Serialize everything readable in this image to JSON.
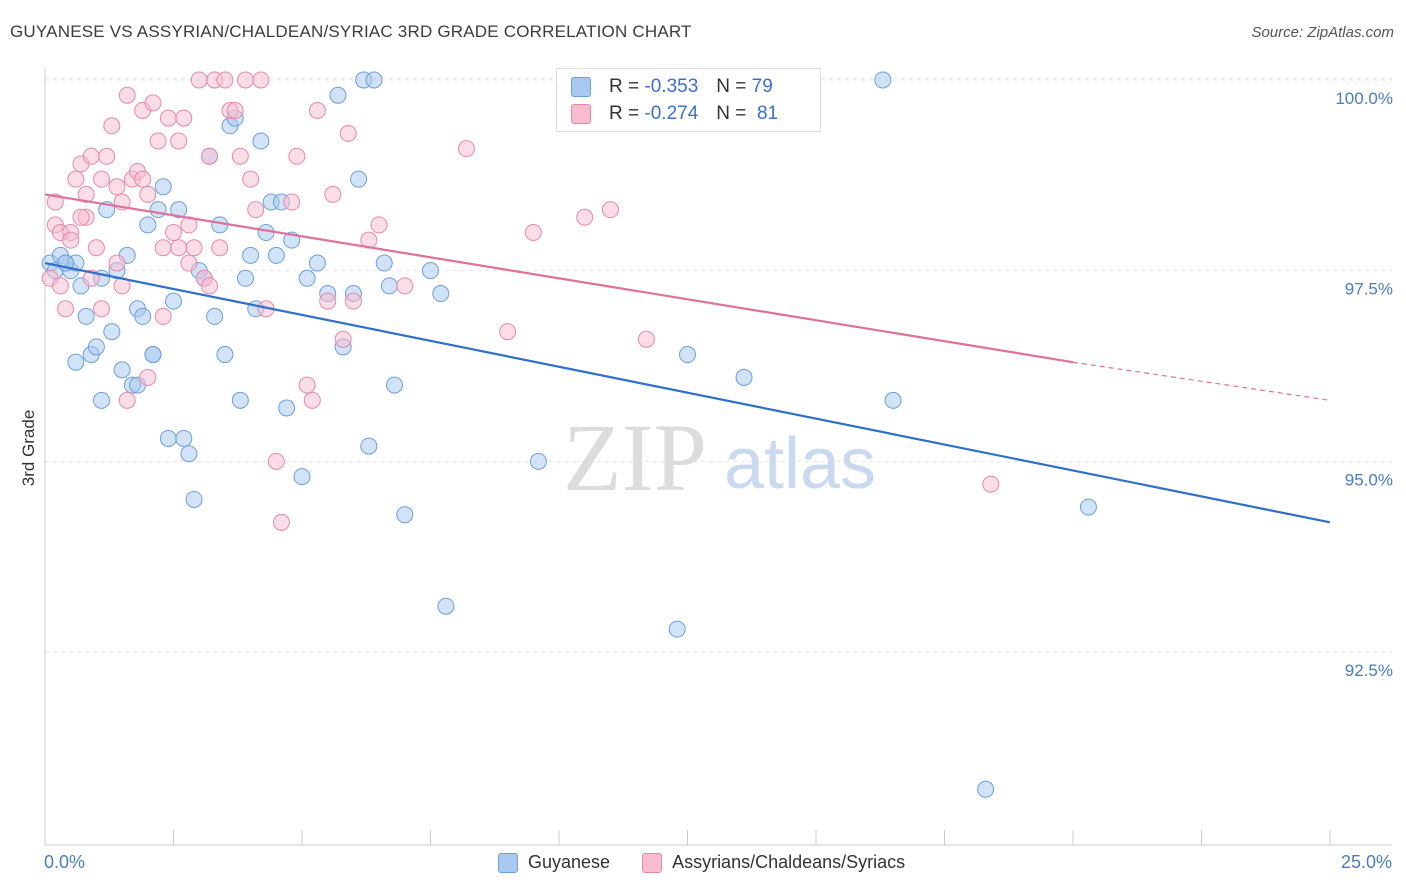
{
  "title": "GUYANESE VS ASSYRIAN/CHALDEAN/SYRIAC 3RD GRADE CORRELATION CHART",
  "source": "Source: ZipAtlas.com",
  "watermark": {
    "zip": "ZIP",
    "atlas": "atlas"
  },
  "legend": {
    "rows": [
      {
        "r_label": "R =",
        "r_value": "-0.353",
        "n_label": "N =",
        "n_value": "79",
        "color": "#a8c8f0",
        "border": "#6a9fe0"
      },
      {
        "r_label": "R =",
        "r_value": "-0.274",
        "n_label": "N =",
        "n_value": "81",
        "color": "#f8bcd0",
        "border": "#e888a8"
      }
    ]
  },
  "bottom_legend": [
    {
      "label": "Guyanese",
      "color": "#a8c8f0",
      "border": "#6a9fe0"
    },
    {
      "label": "Assyrians/Chaldeans/Syriacs",
      "color": "#f8bcd0",
      "border": "#e888a8"
    }
  ],
  "x_axis": {
    "min_label": "0.0%",
    "max_label": "25.0%"
  },
  "chart_data": {
    "type": "scatter",
    "title": "GUYANESE VS ASSYRIAN/CHALDEAN/SYRIAC 3RD GRADE CORRELATION CHART",
    "xlabel": "",
    "ylabel": "3rd Grade",
    "xlim": [
      0,
      25
    ],
    "ylim": [
      90.0,
      100.5
    ],
    "y_ticks": [
      {
        "value": 100.0,
        "label": "100.0%"
      },
      {
        "value": 97.5,
        "label": "97.5%"
      },
      {
        "value": 95.0,
        "label": "95.0%"
      },
      {
        "value": 92.5,
        "label": "92.5%"
      }
    ],
    "grid": true,
    "legend_position": "top-center",
    "series": [
      {
        "name": "Guyanese",
        "color": "#6a9fe0",
        "fill": "#a8c8f0",
        "trend": {
          "x": [
            0,
            25
          ],
          "y": [
            97.6,
            94.2
          ]
        },
        "points": [
          [
            0.1,
            97.6
          ],
          [
            0.2,
            97.5
          ],
          [
            0.3,
            97.7
          ],
          [
            0.4,
            97.6
          ],
          [
            0.5,
            97.5
          ],
          [
            0.6,
            97.6
          ],
          [
            0.7,
            97.3
          ],
          [
            0.8,
            96.9
          ],
          [
            0.9,
            96.4
          ],
          [
            1.0,
            96.5
          ],
          [
            0.6,
            96.3
          ],
          [
            1.1,
            95.8
          ],
          [
            1.2,
            98.3
          ],
          [
            1.3,
            96.7
          ],
          [
            1.4,
            97.5
          ],
          [
            1.5,
            96.2
          ],
          [
            1.6,
            97.7
          ],
          [
            1.7,
            96.0
          ],
          [
            1.8,
            97.0
          ],
          [
            1.9,
            96.9
          ],
          [
            2.0,
            98.1
          ],
          [
            2.1,
            96.4
          ],
          [
            2.2,
            98.3
          ],
          [
            2.3,
            98.6
          ],
          [
            2.4,
            95.3
          ],
          [
            2.5,
            97.1
          ],
          [
            2.6,
            98.3
          ],
          [
            2.7,
            95.3
          ],
          [
            2.8,
            95.1
          ],
          [
            2.9,
            94.5
          ],
          [
            3.0,
            97.5
          ],
          [
            3.1,
            97.4
          ],
          [
            3.2,
            99.0
          ],
          [
            3.3,
            96.9
          ],
          [
            3.4,
            98.1
          ],
          [
            3.5,
            96.4
          ],
          [
            3.6,
            99.4
          ],
          [
            3.7,
            99.5
          ],
          [
            3.8,
            95.8
          ],
          [
            3.9,
            97.4
          ],
          [
            4.0,
            97.7
          ],
          [
            4.1,
            97.0
          ],
          [
            4.2,
            99.2
          ],
          [
            4.3,
            98.0
          ],
          [
            4.4,
            98.4
          ],
          [
            4.5,
            97.7
          ],
          [
            4.6,
            98.4
          ],
          [
            4.7,
            95.7
          ],
          [
            4.8,
            97.9
          ],
          [
            5.0,
            94.8
          ],
          [
            5.1,
            97.4
          ],
          [
            5.3,
            97.6
          ],
          [
            5.5,
            97.2
          ],
          [
            5.7,
            99.8
          ],
          [
            5.8,
            96.5
          ],
          [
            6.0,
            97.2
          ],
          [
            6.1,
            98.7
          ],
          [
            6.2,
            100.0
          ],
          [
            6.3,
            95.2
          ],
          [
            6.4,
            100.0
          ],
          [
            6.6,
            97.6
          ],
          [
            6.7,
            97.3
          ],
          [
            6.8,
            96.0
          ],
          [
            7.0,
            94.3
          ],
          [
            7.5,
            97.5
          ],
          [
            7.7,
            97.2
          ],
          [
            7.8,
            93.1
          ],
          [
            9.6,
            95.0
          ],
          [
            12.3,
            92.8
          ],
          [
            12.5,
            96.4
          ],
          [
            13.6,
            96.1
          ],
          [
            16.3,
            100.0
          ],
          [
            16.5,
            95.8
          ],
          [
            18.3,
            90.7
          ],
          [
            20.3,
            94.4
          ],
          [
            1.8,
            96.0
          ],
          [
            0.4,
            97.6
          ],
          [
            2.1,
            96.4
          ],
          [
            1.1,
            97.4
          ]
        ]
      },
      {
        "name": "Assyrians/Chaldeans/Syriacs",
        "color": "#e888a8",
        "fill": "#f8bcd0",
        "trend": {
          "x": [
            0,
            20
          ],
          "y": [
            98.5,
            96.3
          ]
        },
        "trend_dashed": {
          "x": [
            20,
            25
          ],
          "y": [
            96.3,
            95.8
          ]
        },
        "points": [
          [
            0.1,
            97.4
          ],
          [
            0.2,
            98.1
          ],
          [
            0.3,
            98.0
          ],
          [
            0.4,
            97.0
          ],
          [
            0.5,
            98.0
          ],
          [
            0.6,
            98.7
          ],
          [
            0.7,
            98.9
          ],
          [
            0.8,
            98.2
          ],
          [
            0.9,
            99.0
          ],
          [
            1.0,
            97.8
          ],
          [
            1.1,
            98.7
          ],
          [
            1.2,
            99.0
          ],
          [
            1.3,
            99.4
          ],
          [
            1.4,
            98.6
          ],
          [
            1.5,
            98.4
          ],
          [
            1.6,
            99.8
          ],
          [
            1.7,
            98.7
          ],
          [
            1.8,
            98.8
          ],
          [
            1.9,
            99.6
          ],
          [
            2.0,
            98.5
          ],
          [
            2.1,
            99.7
          ],
          [
            2.2,
            99.2
          ],
          [
            2.3,
            97.8
          ],
          [
            2.4,
            99.5
          ],
          [
            2.5,
            98.0
          ],
          [
            2.6,
            99.2
          ],
          [
            2.7,
            99.5
          ],
          [
            2.8,
            98.1
          ],
          [
            2.9,
            97.8
          ],
          [
            3.0,
            100.0
          ],
          [
            3.1,
            97.4
          ],
          [
            3.2,
            99.0
          ],
          [
            3.3,
            100.0
          ],
          [
            3.4,
            97.8
          ],
          [
            3.5,
            100.0
          ],
          [
            3.6,
            99.6
          ],
          [
            3.7,
            99.6
          ],
          [
            3.8,
            99.0
          ],
          [
            3.9,
            100.0
          ],
          [
            4.0,
            98.7
          ],
          [
            4.1,
            98.3
          ],
          [
            4.2,
            100.0
          ],
          [
            4.3,
            97.0
          ],
          [
            4.5,
            95.0
          ],
          [
            4.6,
            94.2
          ],
          [
            4.8,
            98.4
          ],
          [
            4.9,
            99.0
          ],
          [
            5.1,
            96.0
          ],
          [
            5.2,
            95.8
          ],
          [
            5.3,
            99.6
          ],
          [
            5.5,
            97.1
          ],
          [
            5.6,
            98.5
          ],
          [
            5.8,
            96.6
          ],
          [
            5.9,
            99.3
          ],
          [
            6.0,
            97.1
          ],
          [
            6.3,
            97.9
          ],
          [
            6.5,
            98.1
          ],
          [
            7.0,
            97.3
          ],
          [
            8.2,
            99.1
          ],
          [
            9.0,
            96.7
          ],
          [
            9.5,
            98.0
          ],
          [
            10.5,
            98.2
          ],
          [
            11.0,
            98.3
          ],
          [
            11.7,
            96.6
          ],
          [
            18.4,
            94.7
          ],
          [
            0.3,
            97.3
          ],
          [
            0.8,
            98.5
          ],
          [
            1.4,
            97.6
          ],
          [
            2.0,
            96.1
          ],
          [
            2.6,
            97.8
          ],
          [
            3.2,
            97.3
          ],
          [
            0.5,
            97.9
          ],
          [
            1.1,
            97.0
          ],
          [
            1.6,
            95.8
          ],
          [
            2.3,
            96.9
          ],
          [
            0.9,
            97.4
          ],
          [
            1.5,
            97.3
          ],
          [
            0.7,
            98.2
          ],
          [
            1.9,
            98.7
          ],
          [
            2.8,
            97.6
          ],
          [
            0.2,
            98.4
          ]
        ]
      }
    ]
  }
}
